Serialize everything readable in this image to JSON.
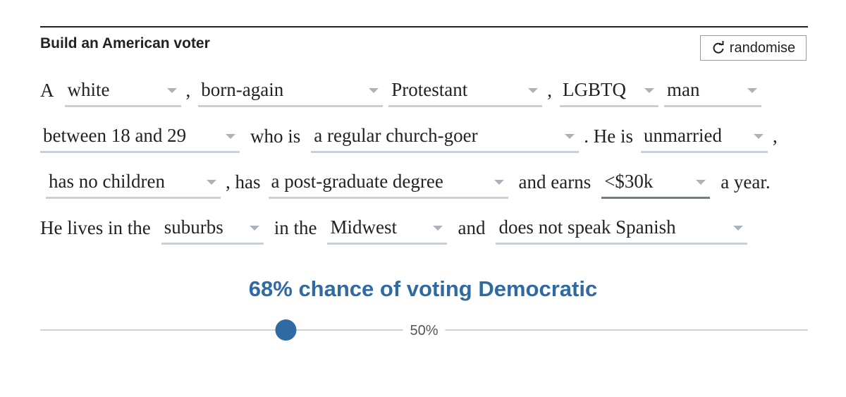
{
  "header": {
    "title": "Build an American voter",
    "button": "randomise"
  },
  "sentence": [
    [
      {
        "text": "A"
      },
      {
        "select": "white"
      },
      {
        "text": ","
      },
      {
        "select": "born-again"
      },
      {
        "select": "Protestant"
      },
      {
        "text": ","
      },
      {
        "select": "LGBTQ"
      },
      {
        "select": "man"
      }
    ],
    [
      {
        "select": "between 18 and 29"
      },
      {
        "text": "who is"
      },
      {
        "select": "a regular church-goer"
      },
      {
        "text": ". He is"
      },
      {
        "select": "unmarried"
      },
      {
        "text": ","
      }
    ],
    [
      {
        "select": "has no children"
      },
      {
        "text": ", has"
      },
      {
        "select": "a post-graduate degree"
      },
      {
        "text": "and earns"
      },
      {
        "select": "<$30k"
      },
      {
        "text": "a year."
      }
    ],
    [
      {
        "text": "He lives in the"
      },
      {
        "select": "suburbs"
      },
      {
        "text": "in the"
      },
      {
        "select": "Midwest"
      },
      {
        "text": "and"
      },
      {
        "select": "does not speak Spanish"
      }
    ]
  ],
  "result": {
    "text": "68% chance of voting Democratic",
    "value": 68
  },
  "slider": {
    "xlim": [
      100,
      0
    ],
    "ticks": [
      {
        "value": 50,
        "label": "50%"
      }
    ],
    "color": "#2f6aa3"
  }
}
